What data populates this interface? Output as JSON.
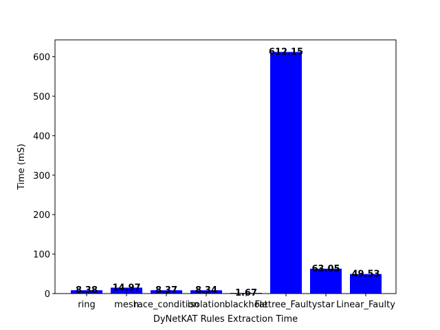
{
  "chart_data": {
    "type": "bar",
    "categories": [
      "ring",
      "mesh",
      "race_condition",
      "isolation",
      "blackhole",
      "Fattree_Faulty",
      "star",
      "Linear_Faulty"
    ],
    "values": [
      8.38,
      14.97,
      8.37,
      8.34,
      1.67,
      612.15,
      63.05,
      49.53
    ],
    "data_labels": [
      "8.38",
      "14.97",
      "8.37",
      "8.34",
      "1.67",
      "612.15",
      "63.05",
      "49.53"
    ],
    "title": "",
    "xlabel": "DyNetKAT Rules Extraction Time",
    "ylabel": "Time (mS)",
    "ylim": [
      0,
      642.76
    ],
    "yticks": [
      0,
      100,
      200,
      300,
      400,
      500,
      600
    ],
    "grid": false,
    "legend": "none",
    "colors": {
      "bar": "#0000ff",
      "axis": "#000000",
      "background": "#ffffff"
    }
  }
}
